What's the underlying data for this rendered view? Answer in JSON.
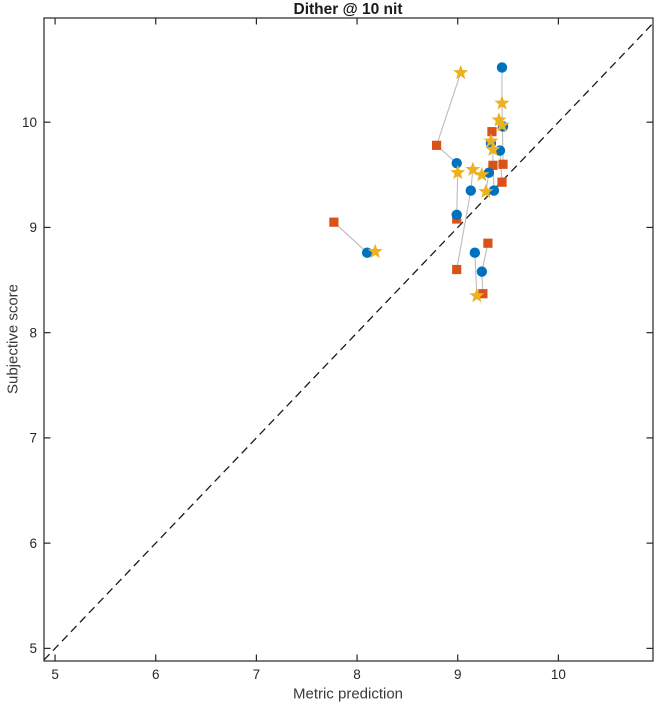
{
  "chart_data": {
    "type": "scatter",
    "title": "Dither @ 10 nit",
    "xlabel": "Metric prediction",
    "ylabel": "Subjective score",
    "xlim": [
      4.89,
      10.94
    ],
    "ylim": [
      4.88,
      10.99
    ],
    "xticks": [
      5,
      6,
      7,
      8,
      9,
      10
    ],
    "yticks": [
      5,
      6,
      7,
      8,
      9,
      10
    ],
    "grid": false,
    "legend": "none",
    "axis_color": "#262626",
    "connector_color": "#bcbcbc",
    "identity_line": {
      "type": "dashed",
      "color": "#1a1a1a",
      "equation": "y=x",
      "from": 4.89,
      "to": 10.94
    },
    "series": [
      {
        "name": "square-series",
        "marker": "square",
        "color": "#D95319",
        "points": [
          [
            7.77,
            9.05
          ],
          [
            8.79,
            9.78
          ],
          [
            9.34,
            9.91
          ],
          [
            9.35,
            9.59
          ],
          [
            9.45,
            9.6
          ],
          [
            9.44,
            9.43
          ],
          [
            8.99,
            9.08
          ],
          [
            8.99,
            8.6
          ],
          [
            9.3,
            8.85
          ],
          [
            9.25,
            8.37
          ]
        ]
      },
      {
        "name": "circle-series",
        "marker": "circle",
        "color": "#0072BD",
        "points": [
          [
            9.44,
            10.52
          ],
          [
            9.45,
            9.96
          ],
          [
            9.33,
            9.8
          ],
          [
            9.42,
            9.73
          ],
          [
            8.99,
            9.61
          ],
          [
            9.31,
            9.52
          ],
          [
            9.13,
            9.35
          ],
          [
            9.36,
            9.35
          ],
          [
            8.99,
            9.12
          ],
          [
            9.17,
            8.76
          ],
          [
            9.24,
            8.58
          ],
          [
            8.1,
            8.76
          ]
        ]
      },
      {
        "name": "star-series",
        "marker": "star",
        "color": "#EDB120",
        "points": [
          [
            8.18,
            8.77
          ],
          [
            9.03,
            10.47
          ],
          [
            9.44,
            10.18
          ],
          [
            9.41,
            10.02
          ],
          [
            9.44,
            9.97
          ],
          [
            9.33,
            9.82
          ],
          [
            9.35,
            9.74
          ],
          [
            9.0,
            9.52
          ],
          [
            9.15,
            9.55
          ],
          [
            9.24,
            9.5
          ],
          [
            9.28,
            9.34
          ],
          [
            9.19,
            8.35
          ]
        ]
      }
    ],
    "connectors": [
      [
        [
          7.77,
          9.05
        ],
        [
          8.1,
          8.76
        ]
      ],
      [
        [
          9.03,
          10.47
        ],
        [
          8.79,
          9.78
        ],
        [
          8.99,
          9.61
        ]
      ],
      [
        [
          9.44,
          10.52
        ],
        [
          9.44,
          10.18
        ],
        [
          9.45,
          9.6
        ]
      ],
      [
        [
          9.41,
          10.02
        ],
        [
          9.44,
          9.97
        ],
        [
          9.34,
          9.91
        ]
      ],
      [
        [
          9.33,
          9.82
        ],
        [
          9.35,
          9.74
        ],
        [
          9.35,
          9.59
        ]
      ],
      [
        [
          9.42,
          9.73
        ],
        [
          9.44,
          9.43
        ]
      ],
      [
        [
          9.0,
          9.52
        ],
        [
          8.99,
          9.12
        ],
        [
          8.99,
          9.08
        ]
      ],
      [
        [
          9.15,
          9.55
        ],
        [
          9.13,
          9.35
        ],
        [
          8.99,
          8.6
        ]
      ],
      [
        [
          9.3,
          8.85
        ],
        [
          9.24,
          8.58
        ],
        [
          9.25,
          8.37
        ]
      ],
      [
        [
          9.17,
          8.76
        ],
        [
          9.19,
          8.35
        ]
      ],
      [
        [
          9.31,
          9.52
        ],
        [
          9.28,
          9.34
        ]
      ],
      [
        [
          9.36,
          9.35
        ],
        [
          9.35,
          9.59
        ]
      ]
    ]
  }
}
